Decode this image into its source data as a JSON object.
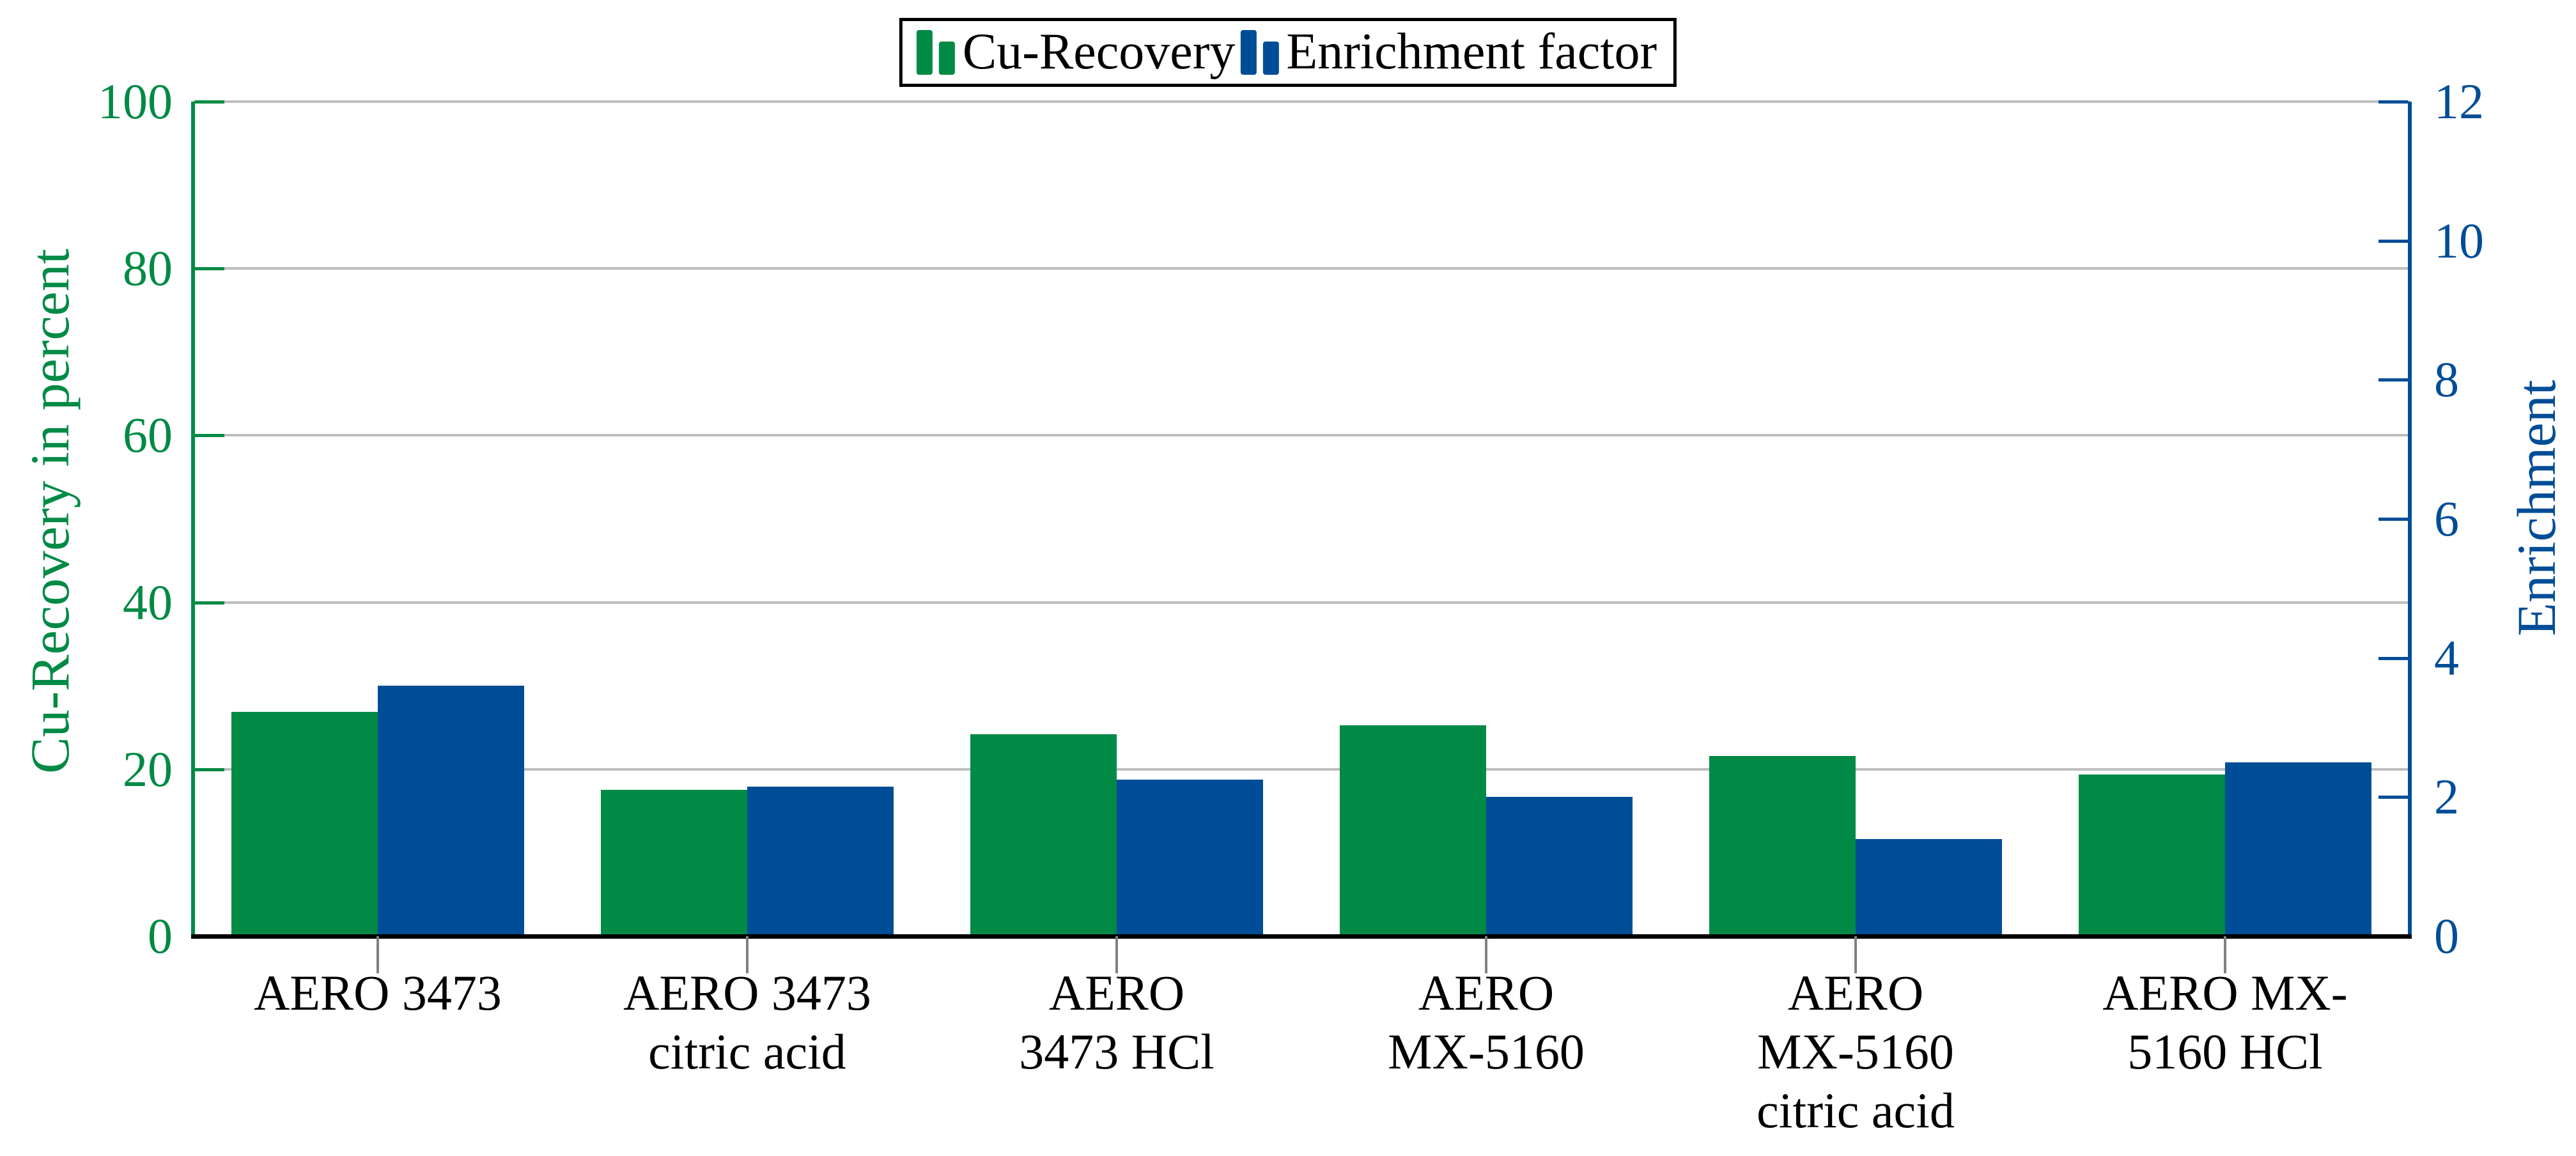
{
  "chart_data": {
    "type": "bar",
    "title": "",
    "categories": [
      "AERO 3473",
      "AERO 3473\ncitric acid",
      "AERO\n3473 HCl",
      "AERO\nMX-5160",
      "AERO\nMX-5160\ncitric acid",
      "AERO MX-\n5160 HCl"
    ],
    "series": [
      {
        "name": "Cu-Recovery",
        "axis": "left",
        "color": "#008A45",
        "values": [
          26.9,
          17.5,
          24.2,
          25.3,
          21.6,
          19.4
        ]
      },
      {
        "name": "Enrichment factor",
        "axis": "right",
        "color": "#004D97",
        "values": [
          3.6,
          2.15,
          2.25,
          2.0,
          1.4,
          2.5
        ]
      }
    ],
    "left_axis": {
      "label": "Cu-Recovery in percent",
      "min": 0,
      "max": 100,
      "ticks": [
        0,
        20,
        40,
        60,
        80,
        100
      ],
      "color": "#008A45"
    },
    "right_axis": {
      "label": "Enrichment",
      "min": 0,
      "max": 12,
      "ticks": [
        0,
        2,
        4,
        6,
        8,
        10,
        12
      ],
      "color": "#004D97"
    },
    "gridline_values": [
      20,
      40,
      60,
      80,
      100
    ],
    "grid": "horizontal",
    "legend_position": "top-center",
    "colors": {
      "gridline": "#BEBEBE",
      "bottom_axis": "#000000",
      "x_tick": "#808080",
      "background": "#ffffff",
      "legend_border": "#000000"
    }
  },
  "legend": {
    "items": [
      {
        "label": "Cu-Recovery",
        "color": "#008A45"
      },
      {
        "label": "Enrichment factor",
        "color": "#004D97"
      }
    ]
  }
}
